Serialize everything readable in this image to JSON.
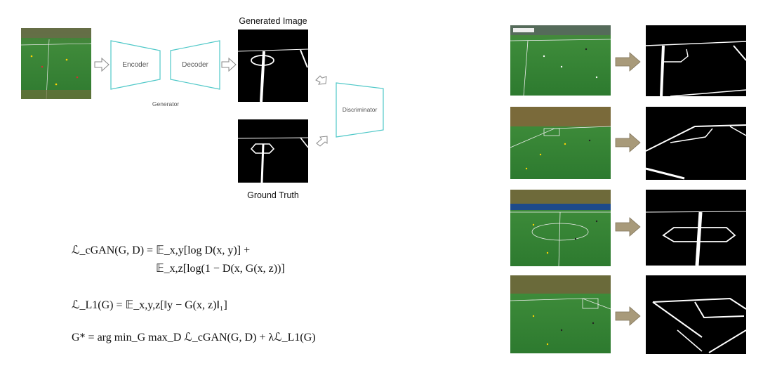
{
  "generator": {
    "encoder_label": "Encoder",
    "decoder_label": "Decoder",
    "caption": "Generator"
  },
  "generated_image_caption": "Generated Image",
  "ground_truth_caption": "Ground Truth",
  "discriminator_label": "Discriminator",
  "equations": {
    "cgan_line1": "ℒ_cGAN(G, D) = 𝔼_x,y[log D(x, y)] +",
    "cgan_line2": "𝔼_x,z[log(1 − D(x, G(x, z))]",
    "l1": "ℒ_L1(G) = 𝔼_x,y,z[‖y − G(x, z)‖₁]",
    "objective": "G* = arg min_G max_D ℒ_cGAN(G, D) + λℒ_L1(G)"
  },
  "colors": {
    "block_stroke": "#4fc8c8",
    "pitch": "#3f8a3a",
    "arrow_fill": "#a89a7a"
  }
}
